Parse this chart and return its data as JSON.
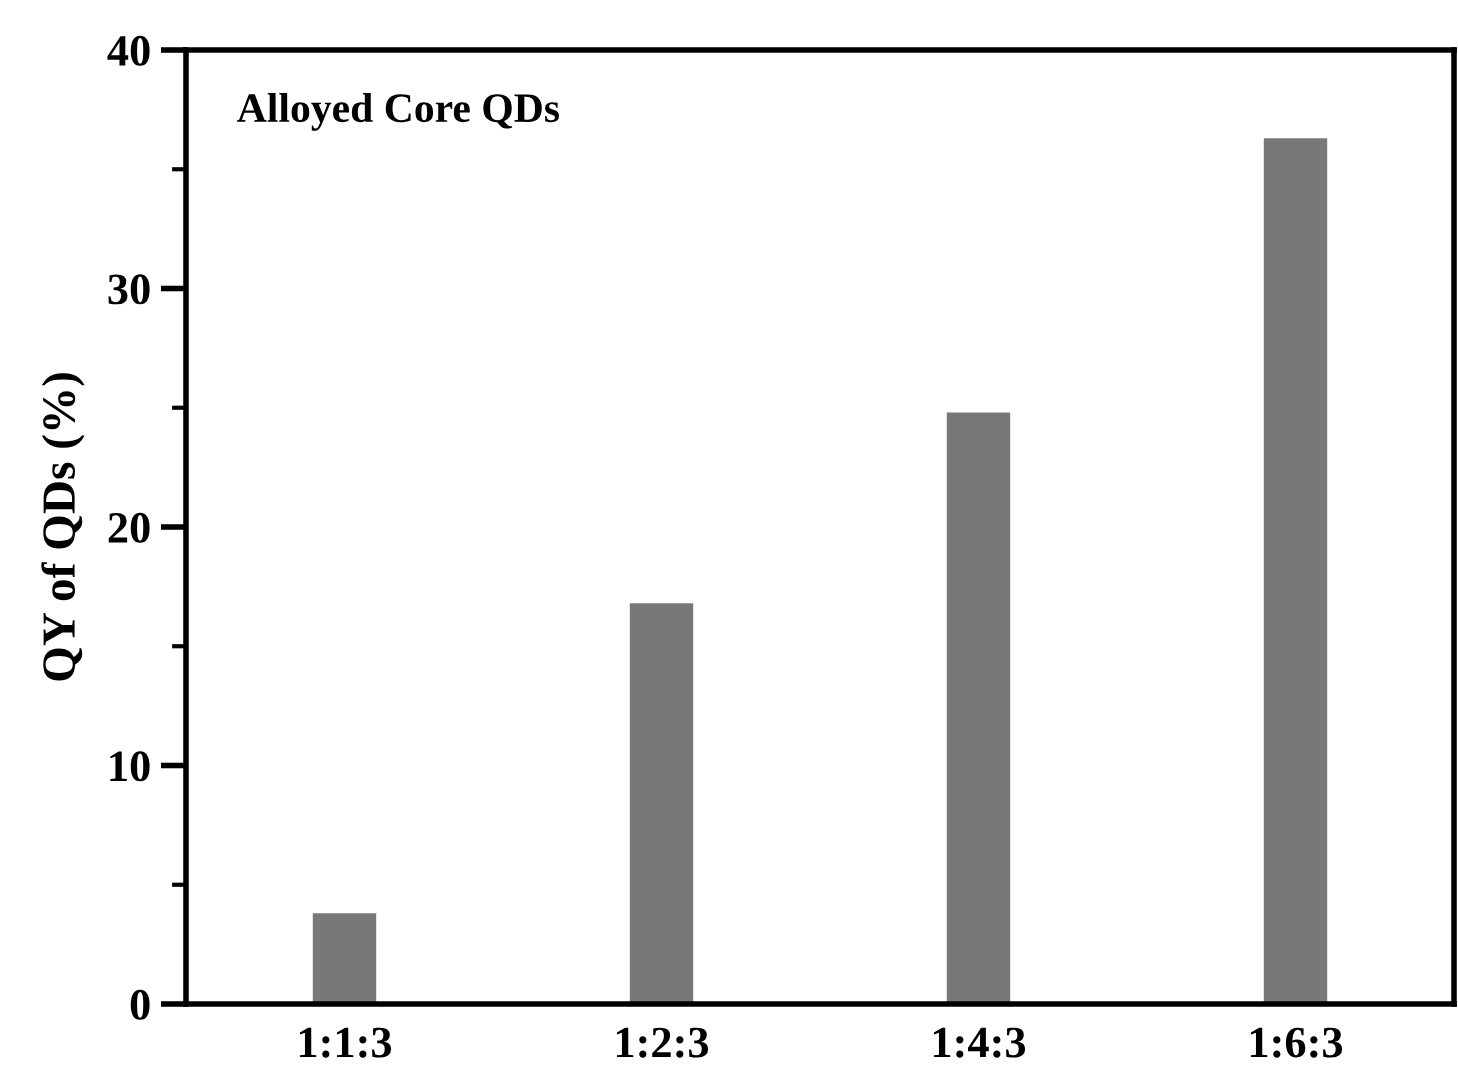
{
  "chart_data": {
    "type": "bar",
    "categories": [
      "1:1:3",
      "1:2:3",
      "1:4:3",
      "1:6:3"
    ],
    "values": [
      3.8,
      16.8,
      24.8,
      36.3
    ],
    "color": "#787878",
    "ylabel": "QY of QDs (%)",
    "annotations": [
      "Alloyed Core QDs"
    ],
    "ylim": [
      0,
      40
    ],
    "yticks": [
      0,
      10,
      20,
      30,
      40
    ],
    "grid": false,
    "legend": false
  }
}
